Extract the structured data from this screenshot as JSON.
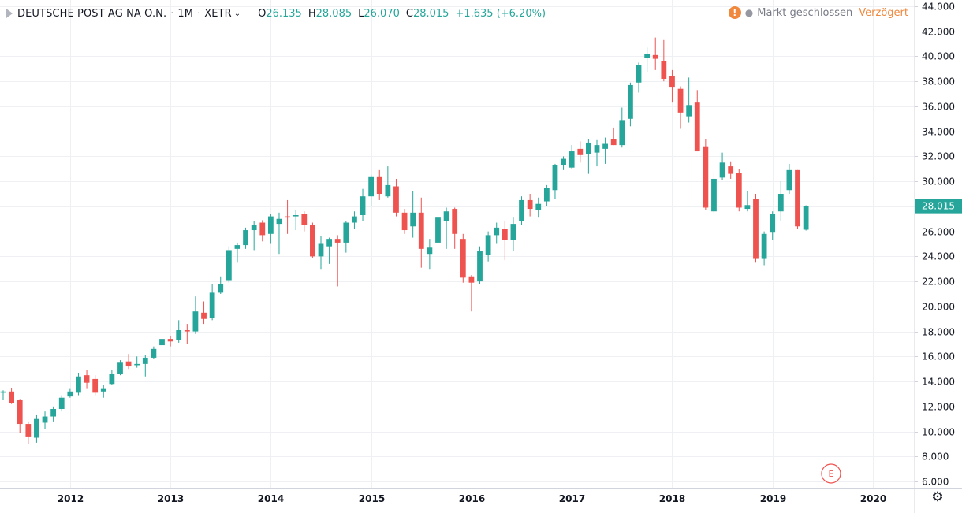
{
  "header": {
    "symbol": "DEUTSCHE POST AG NA O.N.",
    "sep1": "·",
    "interval": "1M",
    "sep2": "·",
    "exchange": "XETR",
    "ohlc": {
      "open_label": "O",
      "open": "26.135",
      "high_label": "H",
      "high": "28.085",
      "low_label": "L",
      "low": "26.070",
      "close_label": "C",
      "close": "28.015"
    },
    "change": "+1.635 (+6.20%)"
  },
  "status": {
    "icon": "warning-icon",
    "icon_glyph": "!",
    "dot": "●",
    "market": "Markt geschlossen",
    "delayed": "Verzögert"
  },
  "colors": {
    "up": "#26a69a",
    "down": "#ef5350",
    "grid": "#eef0f3",
    "axis": "#d1d4dc"
  },
  "chart_data": {
    "type": "candlestick",
    "ylim": [
      5.5,
      44.5
    ],
    "y_ticks": [
      "6.000",
      "8.000",
      "10.000",
      "12.000",
      "14.000",
      "16.000",
      "18.000",
      "20.000",
      "22.000",
      "24.000",
      "26.000",
      "28.000",
      "30.000",
      "32.000",
      "34.000",
      "36.000",
      "38.000",
      "40.000",
      "42.000",
      "44.000"
    ],
    "y_tick_values": [
      6,
      8,
      10,
      12,
      14,
      16,
      18,
      20,
      22,
      24,
      26,
      28,
      30,
      32,
      34,
      36,
      38,
      40,
      42,
      44
    ],
    "x_start": "2011-05",
    "x_end": "2020-06",
    "year_ticks": [
      {
        "label": "2012",
        "date": "2012-01"
      },
      {
        "label": "2013",
        "date": "2013-01"
      },
      {
        "label": "2014",
        "date": "2014-01"
      },
      {
        "label": "2015",
        "date": "2015-01"
      },
      {
        "label": "2016",
        "date": "2016-01"
      },
      {
        "label": "2017",
        "date": "2017-01"
      },
      {
        "label": "2018",
        "date": "2018-01"
      },
      {
        "label": "2019",
        "date": "2019-01"
      },
      {
        "label": "2020",
        "date": "2020-01"
      }
    ],
    "last_price_label": "28.015",
    "last_price": 28.015,
    "event_marker": {
      "label": "E",
      "date": "2019-08"
    },
    "candles": [
      {
        "d": "2011-05",
        "o": 13.1,
        "h": 13.3,
        "l": 12.5,
        "c": 13.2
      },
      {
        "d": "2011-06",
        "o": 13.2,
        "h": 13.5,
        "l": 12.2,
        "c": 12.3
      },
      {
        "d": "2011-07",
        "o": 12.5,
        "h": 12.6,
        "l": 9.9,
        "c": 10.6
      },
      {
        "d": "2011-08",
        "o": 10.6,
        "h": 10.8,
        "l": 9.0,
        "c": 9.6
      },
      {
        "d": "2011-09",
        "o": 9.5,
        "h": 11.3,
        "l": 9.1,
        "c": 11.0
      },
      {
        "d": "2011-10",
        "o": 10.7,
        "h": 11.6,
        "l": 10.2,
        "c": 11.2
      },
      {
        "d": "2011-11",
        "o": 11.2,
        "h": 12.0,
        "l": 10.8,
        "c": 11.8
      },
      {
        "d": "2011-12",
        "o": 11.8,
        "h": 12.9,
        "l": 11.6,
        "c": 12.7
      },
      {
        "d": "2012-01",
        "o": 12.8,
        "h": 13.4,
        "l": 12.7,
        "c": 13.2
      },
      {
        "d": "2012-02",
        "o": 13.1,
        "h": 14.7,
        "l": 12.9,
        "c": 14.4
      },
      {
        "d": "2012-03",
        "o": 14.5,
        "h": 14.9,
        "l": 13.4,
        "c": 13.9
      },
      {
        "d": "2012-04",
        "o": 14.2,
        "h": 14.5,
        "l": 12.9,
        "c": 13.1
      },
      {
        "d": "2012-05",
        "o": 13.2,
        "h": 13.7,
        "l": 12.7,
        "c": 13.4
      },
      {
        "d": "2012-06",
        "o": 13.8,
        "h": 14.9,
        "l": 13.7,
        "c": 14.6
      },
      {
        "d": "2012-07",
        "o": 14.6,
        "h": 15.7,
        "l": 14.5,
        "c": 15.5
      },
      {
        "d": "2012-08",
        "o": 15.6,
        "h": 16.2,
        "l": 15.0,
        "c": 15.2
      },
      {
        "d": "2012-09",
        "o": 15.3,
        "h": 16.0,
        "l": 15.1,
        "c": 15.4
      },
      {
        "d": "2012-10",
        "o": 15.4,
        "h": 16.1,
        "l": 14.4,
        "c": 15.9
      },
      {
        "d": "2012-11",
        "o": 15.9,
        "h": 16.8,
        "l": 15.8,
        "c": 16.6
      },
      {
        "d": "2012-12",
        "o": 16.9,
        "h": 17.7,
        "l": 16.6,
        "c": 17.4
      },
      {
        "d": "2013-01",
        "o": 17.4,
        "h": 17.6,
        "l": 16.8,
        "c": 17.2
      },
      {
        "d": "2013-02",
        "o": 17.3,
        "h": 18.9,
        "l": 17.1,
        "c": 18.1
      },
      {
        "d": "2013-03",
        "o": 18.1,
        "h": 18.6,
        "l": 17.0,
        "c": 18.0
      },
      {
        "d": "2013-04",
        "o": 18.0,
        "h": 20.8,
        "l": 17.8,
        "c": 19.6
      },
      {
        "d": "2013-05",
        "o": 19.5,
        "h": 20.4,
        "l": 18.6,
        "c": 19.0
      },
      {
        "d": "2013-06",
        "o": 19.1,
        "h": 21.8,
        "l": 18.9,
        "c": 21.1
      },
      {
        "d": "2013-07",
        "o": 21.1,
        "h": 22.4,
        "l": 21.0,
        "c": 21.8
      },
      {
        "d": "2013-08",
        "o": 22.1,
        "h": 24.8,
        "l": 21.9,
        "c": 24.5
      },
      {
        "d": "2013-09",
        "o": 24.6,
        "h": 25.1,
        "l": 23.5,
        "c": 24.9
      },
      {
        "d": "2013-10",
        "o": 24.9,
        "h": 26.3,
        "l": 24.6,
        "c": 26.1
      },
      {
        "d": "2013-11",
        "o": 26.1,
        "h": 26.8,
        "l": 24.5,
        "c": 26.5
      },
      {
        "d": "2013-12",
        "o": 26.7,
        "h": 26.9,
        "l": 25.2,
        "c": 25.7
      },
      {
        "d": "2014-01",
        "o": 25.8,
        "h": 27.4,
        "l": 25.0,
        "c": 27.2
      },
      {
        "d": "2014-02",
        "o": 26.6,
        "h": 27.5,
        "l": 24.2,
        "c": 27.0
      },
      {
        "d": "2014-03",
        "o": 27.2,
        "h": 28.5,
        "l": 25.8,
        "c": 27.1
      },
      {
        "d": "2014-04",
        "o": 27.2,
        "h": 27.7,
        "l": 26.1,
        "c": 27.3
      },
      {
        "d": "2014-05",
        "o": 27.4,
        "h": 27.6,
        "l": 26.0,
        "c": 26.5
      },
      {
        "d": "2014-06",
        "o": 26.5,
        "h": 26.7,
        "l": 23.9,
        "c": 24.0
      },
      {
        "d": "2014-07",
        "o": 24.0,
        "h": 25.6,
        "l": 23.0,
        "c": 25.0
      },
      {
        "d": "2014-08",
        "o": 24.8,
        "h": 25.5,
        "l": 23.4,
        "c": 25.4
      },
      {
        "d": "2014-09",
        "o": 25.4,
        "h": 25.7,
        "l": 21.6,
        "c": 25.1
      },
      {
        "d": "2014-10",
        "o": 25.1,
        "h": 26.8,
        "l": 24.3,
        "c": 26.7
      },
      {
        "d": "2014-11",
        "o": 26.7,
        "h": 27.6,
        "l": 26.2,
        "c": 27.2
      },
      {
        "d": "2014-12",
        "o": 27.3,
        "h": 29.4,
        "l": 26.8,
        "c": 28.8
      },
      {
        "d": "2015-01",
        "o": 28.8,
        "h": 30.5,
        "l": 28.0,
        "c": 30.4
      },
      {
        "d": "2015-02",
        "o": 30.4,
        "h": 30.9,
        "l": 28.5,
        "c": 29.0
      },
      {
        "d": "2015-03",
        "o": 28.8,
        "h": 31.2,
        "l": 28.7,
        "c": 29.7
      },
      {
        "d": "2015-04",
        "o": 29.6,
        "h": 30.2,
        "l": 27.2,
        "c": 27.5
      },
      {
        "d": "2015-05",
        "o": 27.5,
        "h": 27.8,
        "l": 25.8,
        "c": 26.1
      },
      {
        "d": "2015-06",
        "o": 26.4,
        "h": 29.2,
        "l": 25.5,
        "c": 27.5
      },
      {
        "d": "2015-07",
        "o": 27.5,
        "h": 28.7,
        "l": 23.1,
        "c": 24.6
      },
      {
        "d": "2015-08",
        "o": 24.2,
        "h": 25.4,
        "l": 23.0,
        "c": 24.7
      },
      {
        "d": "2015-09",
        "o": 25.1,
        "h": 27.8,
        "l": 24.5,
        "c": 27.1
      },
      {
        "d": "2015-10",
        "o": 26.8,
        "h": 27.9,
        "l": 24.6,
        "c": 27.6
      },
      {
        "d": "2015-11",
        "o": 27.8,
        "h": 27.9,
        "l": 24.6,
        "c": 25.8
      },
      {
        "d": "2015-12",
        "o": 25.4,
        "h": 25.8,
        "l": 21.9,
        "c": 22.3
      },
      {
        "d": "2016-01",
        "o": 22.4,
        "h": 22.5,
        "l": 19.6,
        "c": 21.9
      },
      {
        "d": "2016-02",
        "o": 22.0,
        "h": 24.8,
        "l": 21.8,
        "c": 24.4
      },
      {
        "d": "2016-03",
        "o": 24.1,
        "h": 26.0,
        "l": 23.6,
        "c": 25.7
      },
      {
        "d": "2016-04",
        "o": 25.7,
        "h": 26.7,
        "l": 25.0,
        "c": 26.3
      },
      {
        "d": "2016-05",
        "o": 26.2,
        "h": 26.8,
        "l": 23.7,
        "c": 25.3
      },
      {
        "d": "2016-06",
        "o": 25.3,
        "h": 27.1,
        "l": 24.4,
        "c": 26.6
      },
      {
        "d": "2016-07",
        "o": 26.8,
        "h": 28.8,
        "l": 26.5,
        "c": 28.5
      },
      {
        "d": "2016-08",
        "o": 28.5,
        "h": 29.0,
        "l": 27.2,
        "c": 27.8
      },
      {
        "d": "2016-09",
        "o": 27.7,
        "h": 28.7,
        "l": 27.1,
        "c": 28.2
      },
      {
        "d": "2016-10",
        "o": 28.4,
        "h": 29.7,
        "l": 28.0,
        "c": 29.5
      },
      {
        "d": "2016-11",
        "o": 29.3,
        "h": 31.4,
        "l": 28.6,
        "c": 31.3
      },
      {
        "d": "2016-12",
        "o": 31.3,
        "h": 32.0,
        "l": 30.9,
        "c": 31.8
      },
      {
        "d": "2017-01",
        "o": 31.1,
        "h": 32.9,
        "l": 31.0,
        "c": 32.4
      },
      {
        "d": "2017-02",
        "o": 32.6,
        "h": 33.2,
        "l": 31.5,
        "c": 32.1
      },
      {
        "d": "2017-03",
        "o": 32.2,
        "h": 33.4,
        "l": 30.6,
        "c": 33.1
      },
      {
        "d": "2017-04",
        "o": 32.3,
        "h": 33.3,
        "l": 31.2,
        "c": 32.9
      },
      {
        "d": "2017-05",
        "o": 32.6,
        "h": 33.5,
        "l": 31.4,
        "c": 33.0
      },
      {
        "d": "2017-06",
        "o": 33.4,
        "h": 34.3,
        "l": 32.9,
        "c": 32.9
      },
      {
        "d": "2017-07",
        "o": 32.9,
        "h": 35.9,
        "l": 32.7,
        "c": 34.9
      },
      {
        "d": "2017-08",
        "o": 35.0,
        "h": 37.9,
        "l": 34.4,
        "c": 37.7
      },
      {
        "d": "2017-09",
        "o": 37.9,
        "h": 39.5,
        "l": 37.1,
        "c": 39.3
      },
      {
        "d": "2017-10",
        "o": 39.9,
        "h": 40.7,
        "l": 38.7,
        "c": 40.2
      },
      {
        "d": "2017-11",
        "o": 40.1,
        "h": 41.5,
        "l": 38.9,
        "c": 39.8
      },
      {
        "d": "2017-12",
        "o": 39.6,
        "h": 41.3,
        "l": 38.0,
        "c": 38.2
      },
      {
        "d": "2018-01",
        "o": 38.4,
        "h": 38.9,
        "l": 36.3,
        "c": 37.5
      },
      {
        "d": "2018-02",
        "o": 37.4,
        "h": 37.6,
        "l": 34.2,
        "c": 35.5
      },
      {
        "d": "2018-03",
        "o": 35.2,
        "h": 38.3,
        "l": 34.7,
        "c": 36.1
      },
      {
        "d": "2018-04",
        "o": 36.3,
        "h": 37.3,
        "l": 32.4,
        "c": 32.4
      },
      {
        "d": "2018-05",
        "o": 32.8,
        "h": 33.4,
        "l": 27.7,
        "c": 27.9
      },
      {
        "d": "2018-06",
        "o": 27.6,
        "h": 30.6,
        "l": 27.3,
        "c": 30.2
      },
      {
        "d": "2018-07",
        "o": 30.3,
        "h": 32.3,
        "l": 30.1,
        "c": 31.5
      },
      {
        "d": "2018-08",
        "o": 31.2,
        "h": 31.6,
        "l": 30.2,
        "c": 30.6
      },
      {
        "d": "2018-09",
        "o": 30.7,
        "h": 31.0,
        "l": 27.6,
        "c": 27.9
      },
      {
        "d": "2018-10",
        "o": 27.8,
        "h": 29.2,
        "l": 27.6,
        "c": 28.1
      },
      {
        "d": "2018-11",
        "o": 28.6,
        "h": 29.0,
        "l": 23.5,
        "c": 23.8
      },
      {
        "d": "2018-12",
        "o": 23.8,
        "h": 26.0,
        "l": 23.3,
        "c": 25.8
      },
      {
        "d": "2019-01",
        "o": 25.9,
        "h": 27.6,
        "l": 25.3,
        "c": 27.4
      },
      {
        "d": "2019-02",
        "o": 27.6,
        "h": 30.0,
        "l": 26.8,
        "c": 29.0
      },
      {
        "d": "2019-03",
        "o": 29.3,
        "h": 31.4,
        "l": 29.0,
        "c": 30.9
      },
      {
        "d": "2019-04",
        "o": 30.9,
        "h": 30.9,
        "l": 26.2,
        "c": 26.4
      },
      {
        "d": "2019-05",
        "o": 26.135,
        "h": 28.085,
        "l": 26.07,
        "c": 28.015
      }
    ]
  }
}
